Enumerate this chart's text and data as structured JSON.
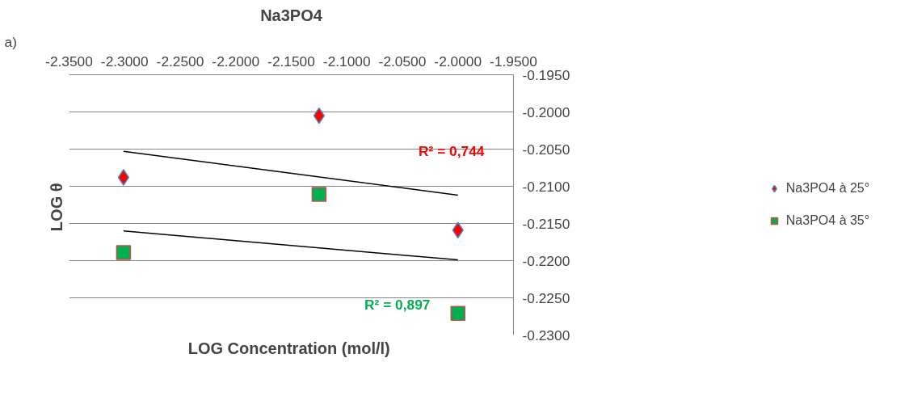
{
  "chart_data": {
    "type": "scatter",
    "title": "Na3PO4",
    "xlabel": "LOG  Concentration (mol/l)",
    "ylabel": "LOG  θ",
    "annotations": [
      "a)",
      "R² = 0,744",
      "R² = 0,897"
    ],
    "xlim": [
      -2.35,
      -1.95
    ],
    "ylim": [
      -0.23,
      -0.195
    ],
    "xticks": [
      {
        "value": -2.35,
        "label": "-2.3500"
      },
      {
        "value": -2.3,
        "label": "-2.3000"
      },
      {
        "value": -2.25,
        "label": "-2.2500"
      },
      {
        "value": -2.2,
        "label": "-2.2000"
      },
      {
        "value": -2.15,
        "label": "-2.1500"
      },
      {
        "value": -2.1,
        "label": "-2.1000"
      },
      {
        "value": -2.05,
        "label": "-2.0500"
      },
      {
        "value": -2.0,
        "label": "-2.0000"
      },
      {
        "value": -1.95,
        "label": "-1.9500"
      }
    ],
    "yticks": [
      {
        "value": -0.23,
        "label": "-0.2300"
      },
      {
        "value": -0.225,
        "label": "-0.2250"
      },
      {
        "value": -0.22,
        "label": "-0.2200"
      },
      {
        "value": -0.215,
        "label": "-0.2150"
      },
      {
        "value": -0.21,
        "label": "-0.2100"
      },
      {
        "value": -0.205,
        "label": "-0.2050"
      },
      {
        "value": -0.2,
        "label": "-0.2000"
      },
      {
        "value": -0.195,
        "label": "-0.1950"
      }
    ],
    "grid": "y",
    "legend": "right",
    "series": [
      {
        "name": "Na3PO4 à 25°",
        "color": "#ff0000",
        "marker": "diamond",
        "x": [
          -2.301,
          -2.125,
          -2.0
        ],
        "values": [
          -0.2088,
          -0.2005,
          -0.2159
        ]
      },
      {
        "name": "Na3PO4 à 35°",
        "color": "#00b050",
        "marker": "square",
        "x": [
          -2.301,
          -2.125,
          -2.0
        ],
        "values": [
          -0.2189,
          -0.2111,
          -0.2271
        ]
      },
      {
        "type": "line",
        "color": "#000000",
        "x": [
          -2.301,
          -2.0
        ],
        "values": [
          -0.2053,
          -0.2112
        ]
      },
      {
        "type": "line",
        "color": "#000000",
        "x": [
          -2.301,
          -2.0
        ],
        "values": [
          -0.216,
          -0.2199
        ]
      }
    ]
  }
}
